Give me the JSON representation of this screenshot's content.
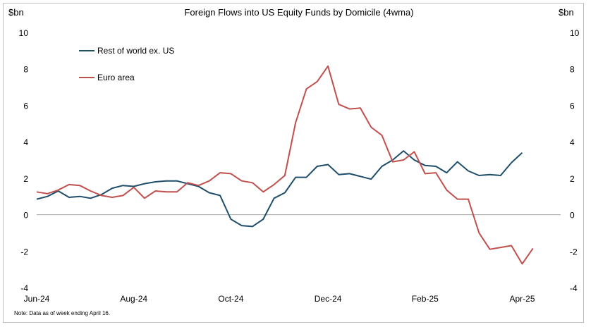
{
  "chart_data": {
    "type": "line",
    "title": "Foreign Flows into US Equity Funds by Domicile (4wma)",
    "ylabel_left": "$bn",
    "ylabel_right": "$bn",
    "ylim": [
      -4,
      10
    ],
    "yticks": [
      -4,
      -2,
      0,
      2,
      4,
      6,
      8,
      10
    ],
    "x_tick_labels": [
      "Jun-24",
      "Aug-24",
      "Oct-24",
      "Dec-24",
      "Feb-25",
      "Apr-25"
    ],
    "x_tick_weeks": [
      0,
      9,
      18,
      27,
      36,
      45
    ],
    "x_weeks_total": 47,
    "note": "Note: Data as of week ending April 16.",
    "legend_position": "top-left",
    "grid": false,
    "series": [
      {
        "name": "Rest of world ex. US",
        "color": "#1f4e6b",
        "values": [
          0.85,
          1.0,
          1.3,
          0.95,
          1.0,
          0.9,
          1.1,
          1.45,
          1.6,
          1.55,
          1.7,
          1.8,
          1.85,
          1.85,
          1.7,
          1.55,
          1.2,
          1.05,
          -0.25,
          -0.6,
          -0.65,
          -0.25,
          0.9,
          1.2,
          2.05,
          2.05,
          2.65,
          2.75,
          2.2,
          2.25,
          2.1,
          1.95,
          2.65,
          3.0,
          3.5,
          3.0,
          2.7,
          2.65,
          2.3,
          2.9,
          2.4,
          2.15,
          2.2,
          2.15,
          2.85,
          3.4
        ]
      },
      {
        "name": "Euro area",
        "color": "#c0504d",
        "values": [
          1.25,
          1.15,
          1.35,
          1.65,
          1.6,
          1.3,
          1.05,
          0.95,
          1.05,
          1.5,
          0.9,
          1.3,
          1.25,
          1.25,
          1.75,
          1.6,
          1.85,
          2.3,
          2.25,
          1.85,
          1.75,
          1.25,
          1.65,
          2.15,
          5.05,
          6.9,
          7.3,
          8.15,
          6.05,
          5.8,
          5.85,
          4.8,
          4.35,
          2.9,
          3.0,
          3.45,
          2.25,
          2.3,
          1.35,
          0.85,
          0.85,
          -1.0,
          -1.9,
          -1.8,
          -1.7,
          -2.7
        ]
      }
    ],
    "euro_extra_point": -1.85
  }
}
